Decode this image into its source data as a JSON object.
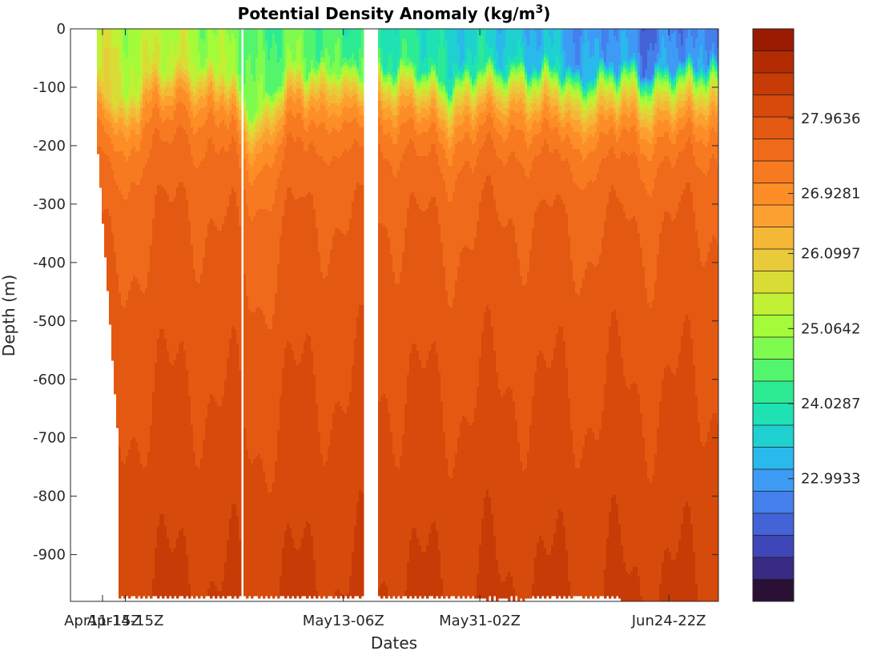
{
  "chart_data": {
    "type": "heatmap",
    "title": "Potential Density Anomaly (kg/m",
    "title_superscript": "3",
    "title_close": ")",
    "xlabel": "Dates",
    "ylabel": "Depth  (m)",
    "ylim": [
      -980,
      0
    ],
    "y_ticks": [
      0,
      -100,
      -200,
      -300,
      -400,
      -500,
      -600,
      -700,
      -800,
      -900
    ],
    "x_ticks": [
      {
        "label": "Apr11-15Z",
        "day": 0
      },
      {
        "label": "Apr14-15Z",
        "day": 3
      },
      {
        "label": "May13-06Z",
        "day": 31.6
      },
      {
        "label": "May31-02Z",
        "day": 49.5
      },
      {
        "label": "Jun24-22Z",
        "day": 74.3
      }
    ],
    "xlim_days": [
      -4.2,
      80.8
    ],
    "colorbar": {
      "min": 21.3,
      "max": 29.2,
      "levels": 26,
      "tick_values": [
        22.9933,
        24.0287,
        25.0642,
        26.0997,
        26.9281,
        27.9636
      ],
      "tick_labels": [
        "22.9933",
        "24.0287",
        "25.0642",
        "26.0997",
        "26.9281",
        "27.9636"
      ],
      "colors": [
        "#2b1036",
        "#392a83",
        "#3f46b8",
        "#4363d7",
        "#4480ec",
        "#3d9bf5",
        "#29b9ea",
        "#1fd0d1",
        "#1ee2b4",
        "#2deb93",
        "#53f56d",
        "#7ffb4f",
        "#a4fb3a",
        "#c1f034",
        "#dadc36",
        "#e9ca3a",
        "#f5b736",
        "#fca030",
        "#fd8d27",
        "#f77a20",
        "#ef6a1a",
        "#e45912",
        "#d64a0b",
        "#c73b06",
        "#b22b03",
        "#9a1a02"
      ]
    },
    "gaps_days": [
      {
        "from": 18.2,
        "to": 18.5
      },
      {
        "from": 34.3,
        "to": 36.2
      },
      {
        "from": 40.8,
        "to": 41.0
      },
      {
        "from": 56.5,
        "to": 56.7
      }
    ]
  }
}
